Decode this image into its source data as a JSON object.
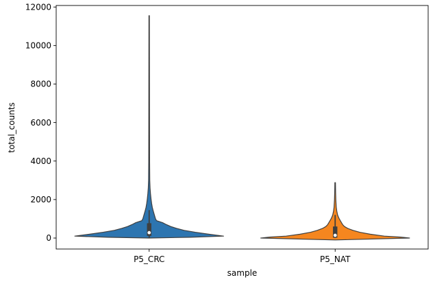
{
  "chart_data": {
    "type": "violin",
    "title": "",
    "xlabel": "sample",
    "ylabel": "total_counts",
    "ylim": [
      -570,
      12080
    ],
    "yticks": [
      0,
      2000,
      4000,
      6000,
      8000,
      10000,
      12000
    ],
    "ytick_labels": [
      "0",
      "2000",
      "4000",
      "6000",
      "8000",
      "10000",
      "12000"
    ],
    "categories": [
      "P5_CRC",
      "P5_NAT"
    ],
    "series": [
      {
        "name": "P5_CRC",
        "color": "#2d75b0",
        "min": 0,
        "max": 11550,
        "q1": 110,
        "median": 280,
        "q3": 770,
        "whisker_low": 0,
        "whisker_high": 1450,
        "density": [
          [
            0,
            0.0
          ],
          [
            40,
            0.55
          ],
          [
            100,
            1.0
          ],
          [
            200,
            0.8
          ],
          [
            300,
            0.62
          ],
          [
            400,
            0.47
          ],
          [
            500,
            0.37
          ],
          [
            600,
            0.29
          ],
          [
            700,
            0.23
          ],
          [
            800,
            0.18
          ],
          [
            900,
            0.1
          ],
          [
            1000,
            0.085
          ],
          [
            1200,
            0.07
          ],
          [
            1400,
            0.055
          ],
          [
            1600,
            0.042
          ],
          [
            1800,
            0.033
          ],
          [
            2000,
            0.026
          ],
          [
            2300,
            0.018
          ],
          [
            2600,
            0.012
          ],
          [
            3000,
            0.008
          ],
          [
            4000,
            0.006
          ],
          [
            6000,
            0.005
          ],
          [
            9000,
            0.004
          ],
          [
            11550,
            0.003
          ]
        ]
      },
      {
        "name": "P5_NAT",
        "color": "#f5861f",
        "min": 0,
        "max": 2880,
        "q1": 20,
        "median": 140,
        "q3": 600,
        "whisker_low": 0,
        "whisker_high": 1200,
        "density": [
          [
            -100,
            0.0
          ],
          [
            0,
            1.0
          ],
          [
            50,
            0.88
          ],
          [
            100,
            0.66
          ],
          [
            200,
            0.47
          ],
          [
            300,
            0.33
          ],
          [
            400,
            0.24
          ],
          [
            500,
            0.17
          ],
          [
            600,
            0.125
          ],
          [
            700,
            0.1
          ],
          [
            800,
            0.085
          ],
          [
            900,
            0.07
          ],
          [
            1000,
            0.055
          ],
          [
            1100,
            0.043
          ],
          [
            1200,
            0.033
          ],
          [
            1400,
            0.022
          ],
          [
            1600,
            0.015
          ],
          [
            2000,
            0.009
          ],
          [
            2400,
            0.006
          ],
          [
            2880,
            0.004
          ]
        ]
      }
    ]
  }
}
